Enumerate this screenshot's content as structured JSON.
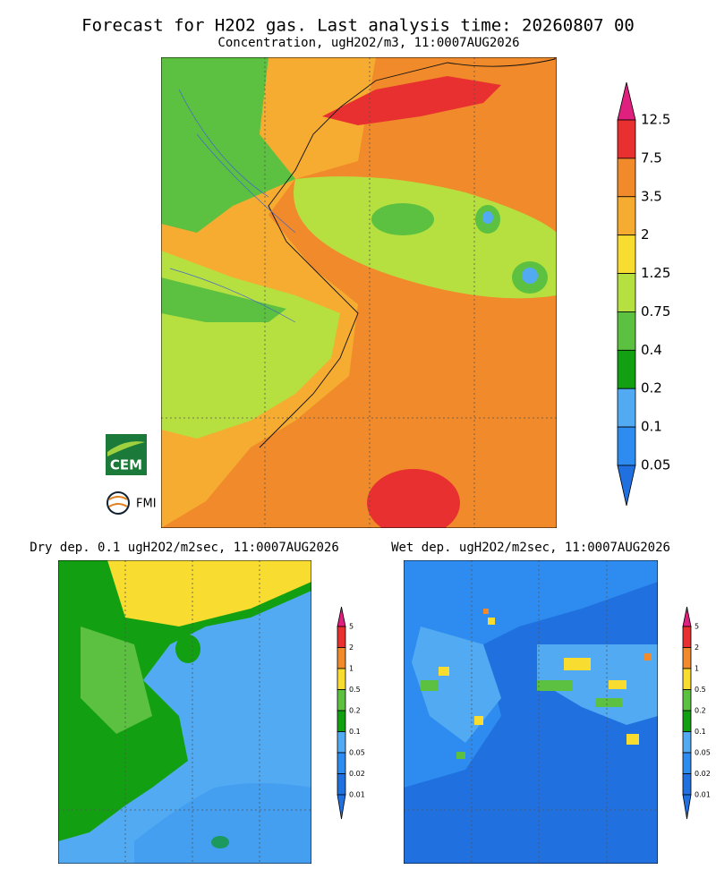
{
  "header": {
    "title": "Forecast for H2O2 gas. Last analysis time: 20260807 00"
  },
  "logos": {
    "cem": "CEM",
    "fmi": "FMI"
  },
  "panels": [
    {
      "subtitle": "Concentration, ugH2O2/m3, 11:0007AUG2026",
      "colorbar": {
        "labels": [
          12.5,
          7.5,
          3.5,
          2,
          1.25,
          0.75,
          0.4,
          0.2,
          0.1,
          0.05
        ],
        "colors": [
          "#e0207f",
          "#e83030",
          "#f08a2a",
          "#f6ac30",
          "#f8dc30",
          "#b6e040",
          "#5cc040",
          "#12a012",
          "#52aaf2",
          "#2e8cf0",
          "#2070e0"
        ]
      }
    },
    {
      "subtitle": "Dry dep. 0.1 ugH2O2/m2sec, 11:0007AUG2026",
      "colorbar": {
        "labels": [
          5,
          2,
          1,
          0.5,
          0.2,
          0.1,
          0.05,
          0.02,
          0.01
        ],
        "colors": [
          "#e0207f",
          "#e83030",
          "#f08a2a",
          "#f8dc30",
          "#5cc040",
          "#12a012",
          "#52aaf2",
          "#2e8cf0",
          "#2070e0",
          "#2070e0"
        ]
      }
    },
    {
      "subtitle": "Wet dep. ugH2O2/m2sec, 11:0007AUG2026",
      "colorbar": {
        "labels": [
          5,
          2,
          1,
          0.5,
          0.2,
          0.1,
          0.05,
          0.02,
          0.01
        ],
        "colors": [
          "#e0207f",
          "#e83030",
          "#f08a2a",
          "#f8dc30",
          "#5cc040",
          "#12a012",
          "#52aaf2",
          "#2e8cf0",
          "#2070e0",
          "#2070e0"
        ]
      }
    }
  ]
}
